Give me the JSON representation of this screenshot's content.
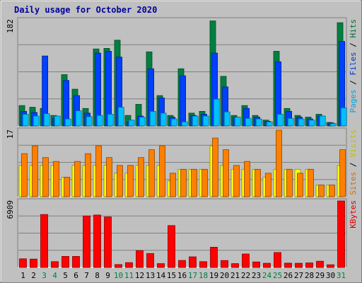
{
  "chart_data": [
    {
      "type": "bar",
      "title": "Daily usage for October 2020",
      "days": [
        "1",
        "2",
        "3",
        "4",
        "5",
        "6",
        "7",
        "8",
        "9",
        "10",
        "11",
        "12",
        "13",
        "14",
        "15",
        "16",
        "17",
        "18",
        "19",
        "20",
        "21",
        "22",
        "23",
        "24",
        "25",
        "26",
        "27",
        "28",
        "29",
        "30",
        "31"
      ],
      "weekend_days": [
        "3",
        "4",
        "10",
        "11",
        "17",
        "18",
        "24",
        "25",
        "31"
      ],
      "panels": [
        {
          "name": "hits",
          "ymax_label": "182",
          "ymax": 182,
          "right_labels": [
            "Pages",
            "Files",
            "Hits"
          ],
          "series": [
            {
              "name": "Hits",
              "color": "#008040",
              "values": [
                35,
                32,
                30,
                18,
                88,
                63,
                30,
                132,
                133,
                147,
                18,
                37,
                127,
                52,
                18,
                98,
                22,
                25,
                180,
                85,
                18,
                35,
                18,
                10,
                128,
                30,
                18,
                15,
                20,
                6,
                177
              ]
            },
            {
              "name": "Files",
              "color": "#0040FF",
              "values": [
                25,
                23,
                120,
                13,
                78,
                52,
                22,
                125,
                128,
                118,
                7,
                17,
                98,
                48,
                15,
                86,
                18,
                20,
                125,
                67,
                15,
                30,
                15,
                8,
                110,
                25,
                15,
                12,
                17,
                5,
                145
              ]
            },
            {
              "name": "Pages",
              "color": "#00C0FF",
              "values": [
                20,
                17,
                21,
                17,
                12,
                26,
                16,
                18,
                20,
                32,
                10,
                15,
                25,
                22,
                12,
                7,
                17,
                17,
                46,
                24,
                15,
                13,
                12,
                7,
                20,
                13,
                12,
                10,
                17,
                4,
                31
              ]
            }
          ]
        },
        {
          "name": "visits",
          "ymax_label": "17",
          "ymax": 17,
          "right_labels": [
            "Sites",
            "Visits"
          ],
          "series": [
            {
              "name": "Visits",
              "color": "#FFFF00",
              "values": [
                8,
                8,
                8,
                8,
                5,
                8,
                8,
                8,
                8,
                6,
                6,
                8,
                8,
                8,
                4,
                7,
                7,
                7,
                13,
                8,
                7,
                7,
                7,
                5,
                7,
                7,
                7,
                7,
                3,
                3,
                8
              ]
            },
            {
              "name": "Sites",
              "color": "#FF8000",
              "values": [
                11,
                13,
                10,
                9,
                5,
                9,
                11,
                13,
                10,
                8,
                8,
                10,
                12,
                13,
                6,
                7,
                7,
                7,
                15,
                12,
                8,
                9,
                7,
                6,
                17,
                7,
                6,
                7,
                3,
                3,
                12
              ]
            }
          ]
        },
        {
          "name": "kbytes",
          "ymax_label": "6909",
          "ymax": 6909,
          "right_labels": [
            "KBytes"
          ],
          "series": [
            {
              "name": "KBytes",
              "color": "#FF0000",
              "values": [
                900,
                870,
                5500,
                600,
                1150,
                1150,
                5350,
                5450,
                5250,
                300,
                500,
                1750,
                1450,
                400,
                4350,
                730,
                1100,
                600,
                2100,
                720,
                400,
                1400,
                570,
                430,
                1550,
                450,
                430,
                470,
                650,
                280,
                6909
              ]
            }
          ]
        }
      ]
    }
  ]
}
